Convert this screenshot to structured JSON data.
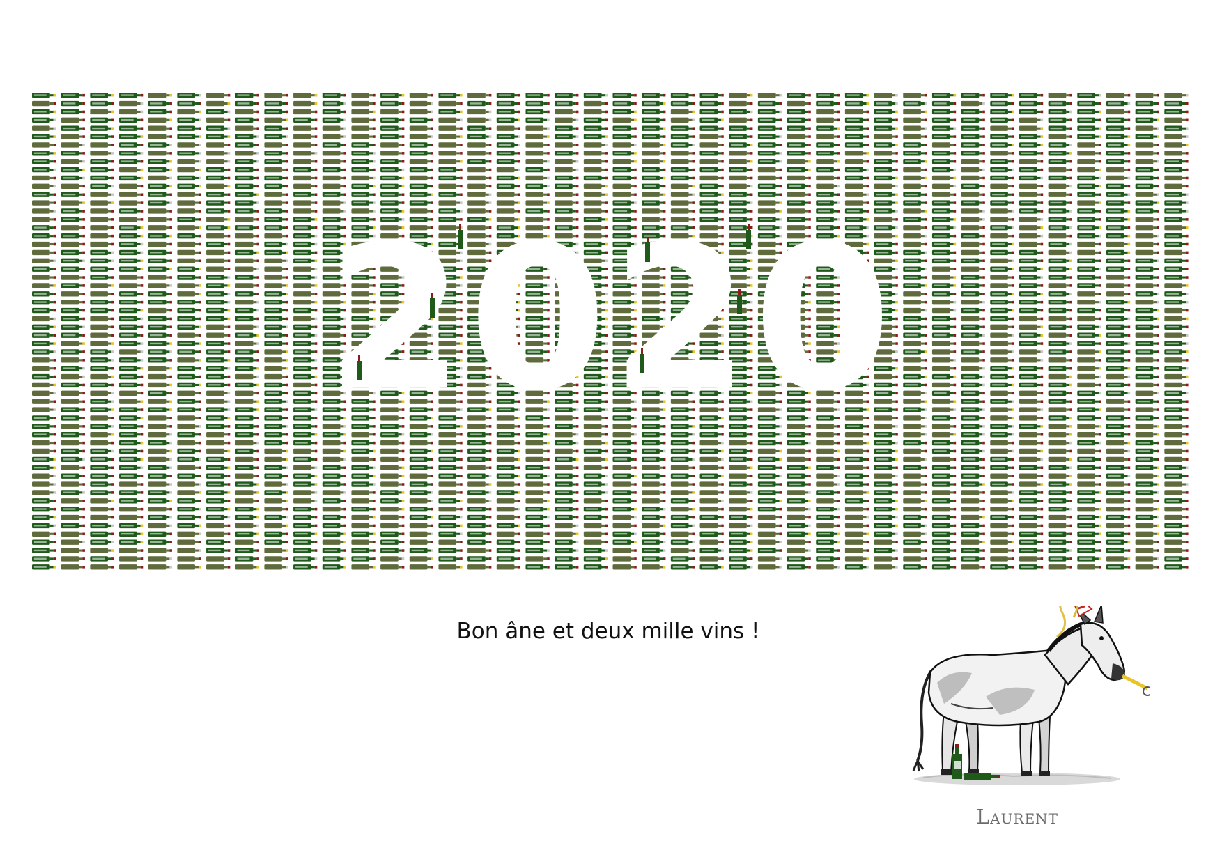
{
  "card": {
    "greeting": "Bon âne et deux mille vins !",
    "signature": "Laurent",
    "year_cutout": "2020"
  },
  "colors": {
    "background": "#ffffff",
    "bottle_dark": "#1f5a1a",
    "bottle_olive": "#5f6b3c",
    "capsule_red": "#8a1c1c",
    "capsule_yellow": "#e6c42a",
    "capsule_silver": "#c8c8c8",
    "greeting_text": "#111111",
    "signature_text": "#6b6b6b"
  },
  "icons": [
    "wine-bottle-icon",
    "donkey-illustration",
    "party-hat-icon",
    "party-horn-icon"
  ]
}
